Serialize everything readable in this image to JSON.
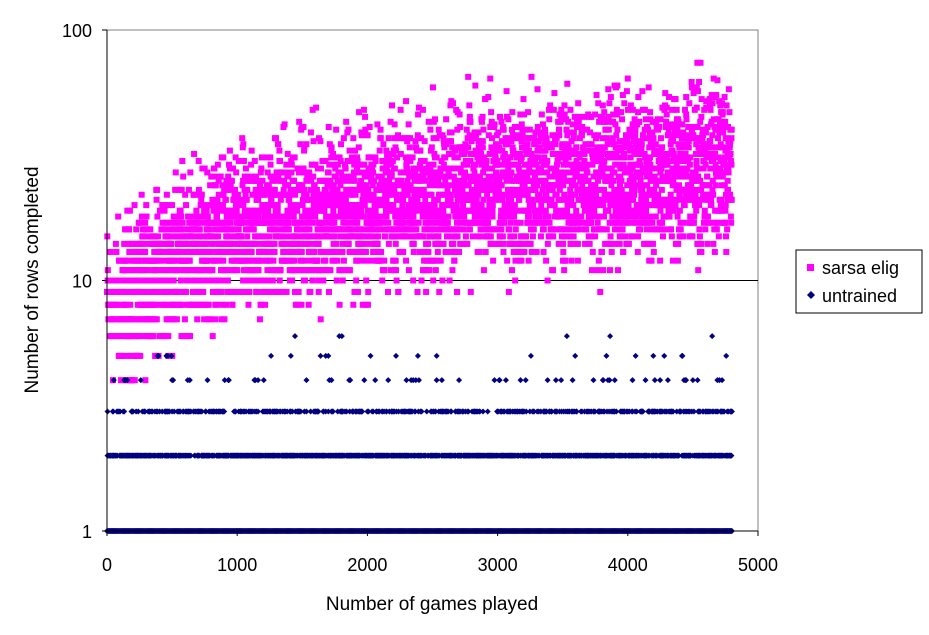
{
  "chart_data": {
    "type": "scatter",
    "title": "",
    "xlabel": "Number of games played",
    "ylabel": "Number of rows completed",
    "xlim": [
      0,
      5000
    ],
    "ylim": [
      1,
      100
    ],
    "yscale": "log",
    "x_ticks": [
      0,
      1000,
      2000,
      3000,
      4000,
      5000
    ],
    "x_tick_labels": [
      "0",
      "1000",
      "2000",
      "3000",
      "4000",
      "5000"
    ],
    "y_ticks": [
      1,
      10,
      100
    ],
    "y_tick_labels": [
      "1",
      "10",
      "100"
    ],
    "gridlines": "horizontal major only",
    "legend_position": "right",
    "series": [
      {
        "name": "sarsa elig",
        "marker": "square",
        "color": "#ff00ff",
        "x_range": [
          0,
          4800
        ],
        "approx_trend": {
          "x": [
            100,
            500,
            1000,
            1500,
            2000,
            2500,
            3000,
            3500,
            4000,
            4500,
            4800
          ],
          "y_min": [
            3,
            3,
            3,
            3,
            3,
            3,
            4,
            4,
            4,
            5,
            7
          ],
          "y_max": [
            18,
            28,
            42,
            55,
            58,
            62,
            75,
            68,
            66,
            85,
            76
          ],
          "y_typical": [
            8,
            12,
            15,
            18,
            20,
            22,
            24,
            25,
            26,
            28,
            28
          ]
        }
      },
      {
        "name": "untrained",
        "marker": "diamond",
        "color": "#000080",
        "x_range": [
          0,
          4800
        ],
        "values_observed": [
          1,
          2,
          3,
          4,
          5,
          6
        ],
        "approx_trend": {
          "level_frequency": {
            "1": "very high",
            "2": "high",
            "3": "medium",
            "4": "low",
            "5": "rare",
            "6": "very rare"
          }
        }
      }
    ]
  },
  "colors": {
    "background": "#ffffff",
    "plot_border": "#808080",
    "sarsa": "#ff00ff",
    "untrained": "#000080"
  }
}
